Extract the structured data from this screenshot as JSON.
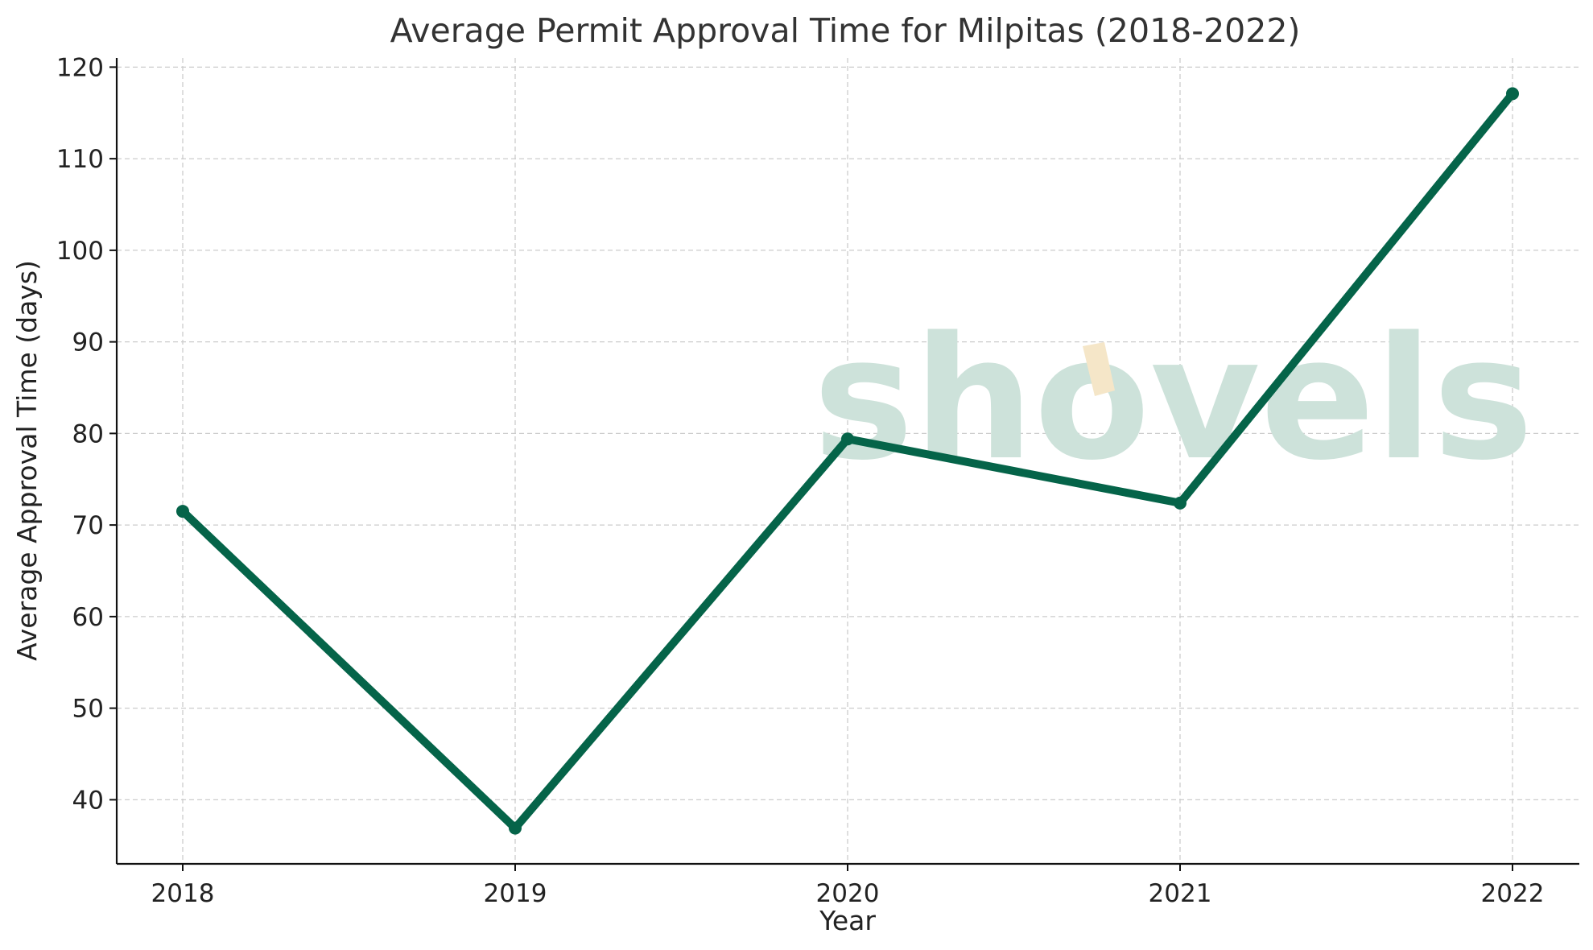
{
  "chart_data": {
    "type": "line",
    "title": "Average Permit Approval Time for Milpitas (2018-2022)",
    "xlabel": "Year",
    "ylabel": "Average Approval Time (days)",
    "x": [
      "2018",
      "2019",
      "2020",
      "2021",
      "2022"
    ],
    "series": [
      {
        "values": [
          71.5,
          36.9,
          79.4,
          72.4,
          117.1
        ]
      }
    ],
    "ylim": [
      33,
      121
    ],
    "yticks": [
      40,
      50,
      60,
      70,
      80,
      90,
      100,
      110,
      120
    ],
    "grid": true,
    "line_color": "#056449",
    "watermark": "shovels",
    "watermark_colors": {
      "text": "#cde2da",
      "accent": "#f5e6c8"
    }
  }
}
